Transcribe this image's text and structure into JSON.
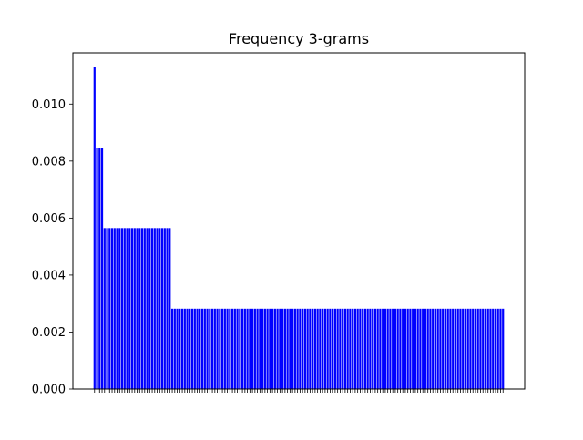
{
  "chart_data": {
    "type": "bar",
    "title": "Frequency 3-grams",
    "xlabel": "",
    "ylabel": "",
    "ylim": [
      0,
      0.0118
    ],
    "yticks": [
      "0.000",
      "0.002",
      "0.004",
      "0.006",
      "0.008",
      "0.010"
    ],
    "ytick_values": [
      0,
      0.002,
      0.004,
      0.006,
      0.008,
      0.01
    ],
    "bar_color": "#0000ff",
    "grid": false,
    "groups": [
      {
        "value": 0.0113,
        "count": 1
      },
      {
        "value": 0.00847,
        "count": 3
      },
      {
        "value": 0.00565,
        "count": 27
      },
      {
        "value": 0.00282,
        "count": 133
      }
    ]
  }
}
